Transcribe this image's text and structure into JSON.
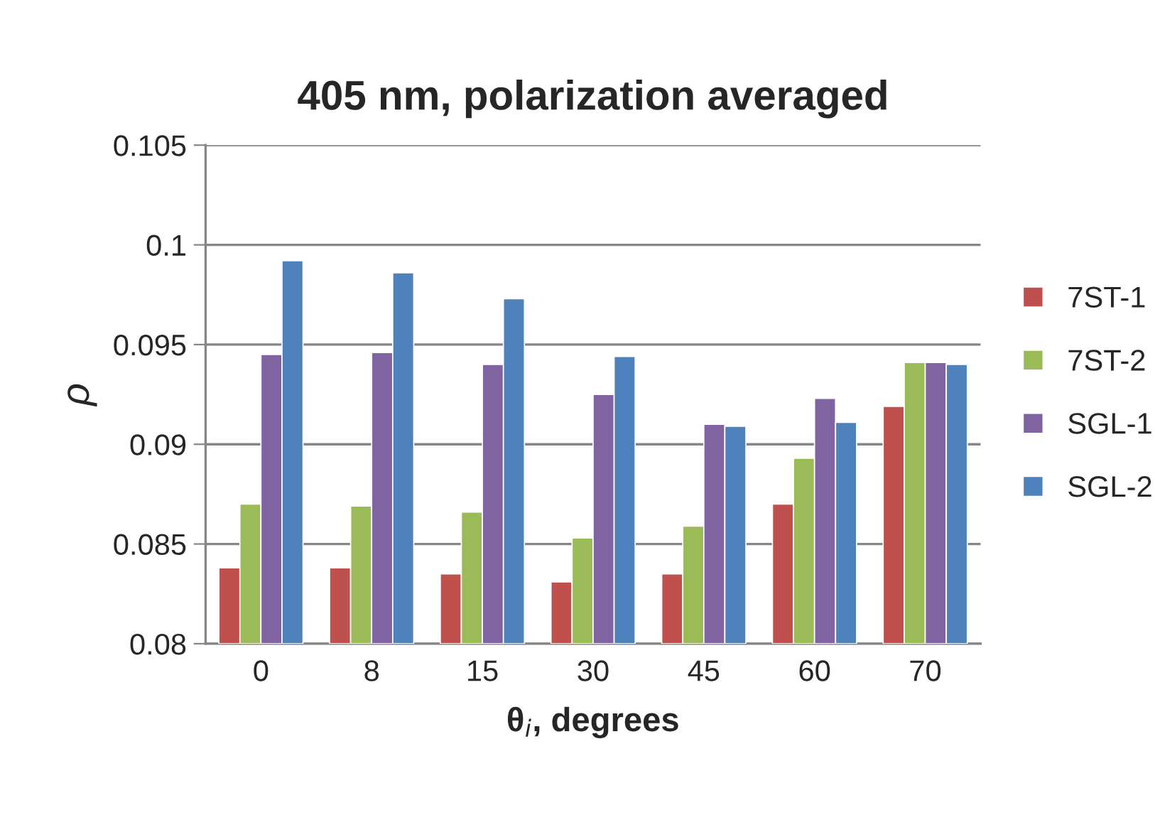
{
  "chart_data": {
    "type": "bar",
    "title": "405 nm, polarization averaged",
    "xlabel": "θ$_{i}$, degrees",
    "ylabel": "ρ",
    "categories": [
      "0",
      "8",
      "15",
      "30",
      "45",
      "60",
      "70"
    ],
    "series": [
      {
        "name": "7ST-1",
        "color": "#c0504d",
        "values": [
          0.0838,
          0.0838,
          0.0835,
          0.0831,
          0.0835,
          0.087,
          0.0919
        ]
      },
      {
        "name": "7ST-2",
        "color": "#9bbb59",
        "values": [
          0.087,
          0.0869,
          0.0866,
          0.0853,
          0.0859,
          0.0893,
          0.0941
        ]
      },
      {
        "name": "SGL-1",
        "color": "#8064a2",
        "values": [
          0.0945,
          0.0946,
          0.094,
          0.0925,
          0.091,
          0.0923,
          0.0941
        ]
      },
      {
        "name": "SGL-2",
        "color": "#4f81bd",
        "values": [
          0.0992,
          0.0986,
          0.0973,
          0.0944,
          0.0909,
          0.0911,
          0.094
        ]
      }
    ],
    "ylim": [
      0.08,
      0.105
    ],
    "yticks": [
      0.08,
      0.085,
      0.09,
      0.095,
      0.1,
      0.105
    ],
    "grid": "y",
    "legend": "right"
  }
}
